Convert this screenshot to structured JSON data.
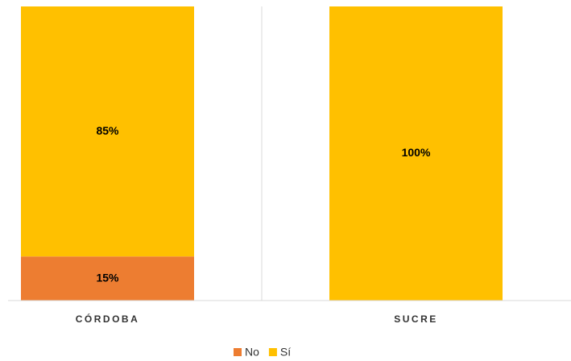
{
  "chart_data": {
    "type": "stacked_bar",
    "categories": [
      "CÓRDOBA",
      "SUCRE"
    ],
    "series": [
      {
        "name": "No",
        "color": "#ED7D31",
        "values": [
          15,
          0
        ],
        "value_labels": [
          "15%",
          null
        ]
      },
      {
        "name": "Sí",
        "color": "#FFC000",
        "values": [
          85,
          100
        ],
        "value_labels": [
          "85%",
          "100%"
        ]
      }
    ],
    "ylim": [
      0,
      100
    ],
    "legend": "bottom"
  }
}
